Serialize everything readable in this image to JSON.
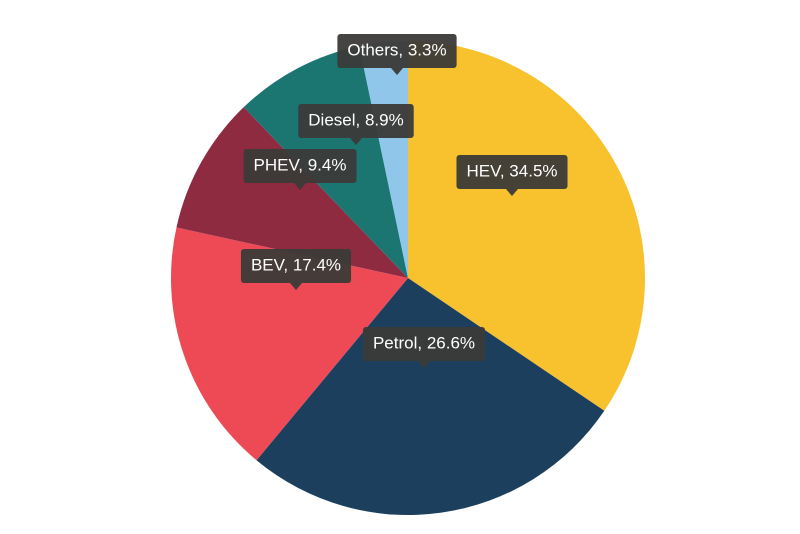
{
  "chart_data": {
    "type": "pie",
    "categories": [
      "HEV",
      "Petrol",
      "BEV",
      "PHEV",
      "Diesel",
      "Others"
    ],
    "values": [
      34.5,
      26.6,
      17.4,
      9.4,
      8.9,
      3.3
    ],
    "value_labels": [
      "HEV, 34.5%",
      "Petrol, 26.6%",
      "BEV, 17.4%",
      "PHEV, 9.4%",
      "Diesel, 8.9%",
      "Others, 3.3%"
    ],
    "colors": [
      "#f8c22e",
      "#1d3f5e",
      "#ee4a56",
      "#8f2b40",
      "#1b7571",
      "#8fc6ea"
    ]
  }
}
